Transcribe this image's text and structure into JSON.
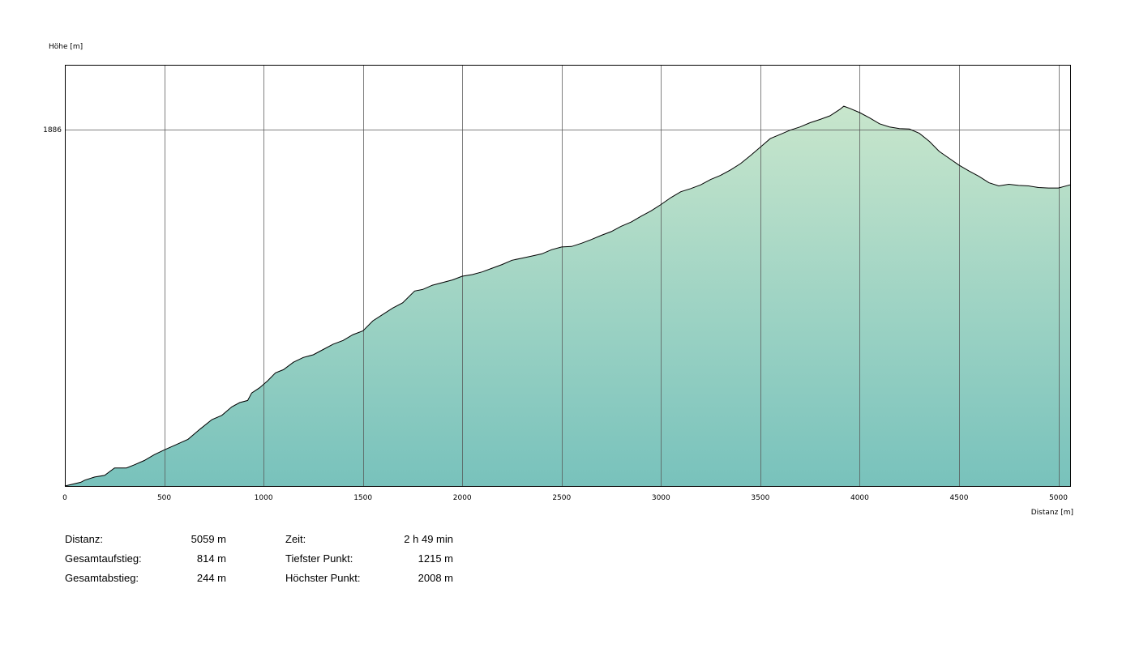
{
  "chart_data": {
    "type": "area",
    "ylabel": "Höhe [m]",
    "xlabel": "Distanz [m]",
    "xlim": [
      0,
      5059
    ],
    "ylim": [
      1215,
      2008
    ],
    "x_ticks": [
      0,
      500,
      1000,
      1500,
      2000,
      2500,
      3000,
      3500,
      4000,
      4500,
      5000
    ],
    "y_ticks": [
      1886
    ],
    "grid": true,
    "colors": {
      "fill_top": "#c8e6cc",
      "fill_bottom": "#78c2bc",
      "line": "#000000",
      "grid": "#555555"
    },
    "profile": [
      [
        0,
        1215
      ],
      [
        80,
        1222
      ],
      [
        100,
        1226
      ],
      [
        150,
        1232
      ],
      [
        200,
        1235
      ],
      [
        250,
        1249
      ],
      [
        310,
        1249
      ],
      [
        350,
        1255
      ],
      [
        400,
        1263
      ],
      [
        450,
        1274
      ],
      [
        500,
        1283
      ],
      [
        560,
        1293
      ],
      [
        620,
        1303
      ],
      [
        680,
        1322
      ],
      [
        740,
        1340
      ],
      [
        790,
        1348
      ],
      [
        840,
        1364
      ],
      [
        880,
        1372
      ],
      [
        920,
        1376
      ],
      [
        940,
        1390
      ],
      [
        980,
        1400
      ],
      [
        1020,
        1413
      ],
      [
        1060,
        1428
      ],
      [
        1100,
        1434
      ],
      [
        1150,
        1448
      ],
      [
        1200,
        1457
      ],
      [
        1250,
        1462
      ],
      [
        1300,
        1472
      ],
      [
        1350,
        1482
      ],
      [
        1400,
        1489
      ],
      [
        1450,
        1500
      ],
      [
        1500,
        1507
      ],
      [
        1550,
        1526
      ],
      [
        1600,
        1538
      ],
      [
        1650,
        1550
      ],
      [
        1700,
        1560
      ],
      [
        1760,
        1582
      ],
      [
        1800,
        1585
      ],
      [
        1850,
        1593
      ],
      [
        1900,
        1598
      ],
      [
        1950,
        1603
      ],
      [
        2000,
        1610
      ],
      [
        2050,
        1613
      ],
      [
        2100,
        1618
      ],
      [
        2150,
        1625
      ],
      [
        2200,
        1632
      ],
      [
        2250,
        1640
      ],
      [
        2300,
        1644
      ],
      [
        2350,
        1648
      ],
      [
        2400,
        1652
      ],
      [
        2450,
        1660
      ],
      [
        2500,
        1665
      ],
      [
        2550,
        1666
      ],
      [
        2600,
        1672
      ],
      [
        2650,
        1679
      ],
      [
        2700,
        1687
      ],
      [
        2750,
        1694
      ],
      [
        2800,
        1704
      ],
      [
        2850,
        1712
      ],
      [
        2900,
        1723
      ],
      [
        2950,
        1733
      ],
      [
        3000,
        1745
      ],
      [
        3050,
        1758
      ],
      [
        3100,
        1769
      ],
      [
        3150,
        1775
      ],
      [
        3200,
        1782
      ],
      [
        3250,
        1792
      ],
      [
        3300,
        1800
      ],
      [
        3350,
        1810
      ],
      [
        3400,
        1822
      ],
      [
        3450,
        1837
      ],
      [
        3500,
        1853
      ],
      [
        3550,
        1869
      ],
      [
        3600,
        1877
      ],
      [
        3650,
        1885
      ],
      [
        3700,
        1891
      ],
      [
        3750,
        1899
      ],
      [
        3800,
        1905
      ],
      [
        3850,
        1912
      ],
      [
        3900,
        1924
      ],
      [
        3920,
        1930
      ],
      [
        3950,
        1926
      ],
      [
        4000,
        1918
      ],
      [
        4050,
        1908
      ],
      [
        4100,
        1897
      ],
      [
        4150,
        1891
      ],
      [
        4200,
        1888
      ],
      [
        4250,
        1887
      ],
      [
        4300,
        1879
      ],
      [
        4350,
        1864
      ],
      [
        4400,
        1845
      ],
      [
        4450,
        1832
      ],
      [
        4500,
        1819
      ],
      [
        4550,
        1808
      ],
      [
        4600,
        1798
      ],
      [
        4650,
        1786
      ],
      [
        4700,
        1780
      ],
      [
        4750,
        1783
      ],
      [
        4800,
        1781
      ],
      [
        4850,
        1780
      ],
      [
        4900,
        1777
      ],
      [
        4950,
        1776
      ],
      [
        5000,
        1776
      ],
      [
        5059,
        1782
      ]
    ]
  },
  "stats": {
    "left": [
      {
        "label": "Distanz:",
        "value": "5059 m"
      },
      {
        "label": "Gesamtaufstieg:",
        "value": "814 m"
      },
      {
        "label": "Gesamtabstieg:",
        "value": "244 m"
      }
    ],
    "right": [
      {
        "label": "Zeit:",
        "value": "2 h 49 min"
      },
      {
        "label": "Tiefster Punkt:",
        "value": "1215 m"
      },
      {
        "label": "Höchster Punkt:",
        "value": "2008 m"
      }
    ]
  }
}
